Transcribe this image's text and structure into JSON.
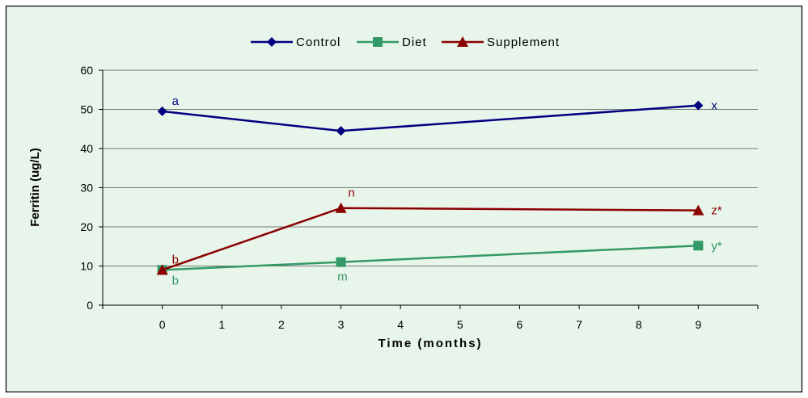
{
  "chart_data": {
    "type": "line",
    "title": "",
    "xlabel": "Time (months)",
    "ylabel": "Ferritin (ug/L)",
    "xlim": [
      -1,
      10
    ],
    "ylim": [
      0,
      60
    ],
    "x_ticks": [
      0,
      1,
      2,
      3,
      4,
      5,
      6,
      7,
      8,
      9
    ],
    "y_ticks": [
      0,
      10,
      20,
      30,
      40,
      50,
      60
    ],
    "grid": "horizontal",
    "legend_position": "top-center",
    "plot_background": "#e8f5ea",
    "series": [
      {
        "name": "Control",
        "color": "#000080",
        "marker": "diamond",
        "x": [
          0,
          3,
          9
        ],
        "y": [
          49.5,
          44.5,
          51
        ],
        "annotations": [
          {
            "x": 0,
            "y": 49.5,
            "text": "a",
            "side": "upper-right"
          },
          {
            "x": 9,
            "y": 51,
            "text": "x",
            "side": "right"
          }
        ]
      },
      {
        "name": "Diet",
        "color": "#339966",
        "marker": "square",
        "x": [
          0,
          3,
          9
        ],
        "y": [
          9,
          11,
          15.2
        ],
        "annotations": [
          {
            "x": 0,
            "y": 9,
            "text": "b",
            "side": "lower-right"
          },
          {
            "x": 3,
            "y": 11,
            "text": "m",
            "side": "below"
          },
          {
            "x": 9,
            "y": 15.2,
            "text": "y*",
            "side": "right"
          }
        ]
      },
      {
        "name": "Supplement",
        "color": "#8b0000",
        "marker": "triangle",
        "x": [
          0,
          3,
          9
        ],
        "y": [
          9,
          24.8,
          24.2
        ],
        "annotations": [
          {
            "x": 0,
            "y": 9,
            "text": "b",
            "side": "upper-right"
          },
          {
            "x": 3,
            "y": 24.8,
            "text": "n",
            "side": "above"
          },
          {
            "x": 9,
            "y": 24.2,
            "text": "z*",
            "side": "right"
          }
        ]
      }
    ]
  }
}
